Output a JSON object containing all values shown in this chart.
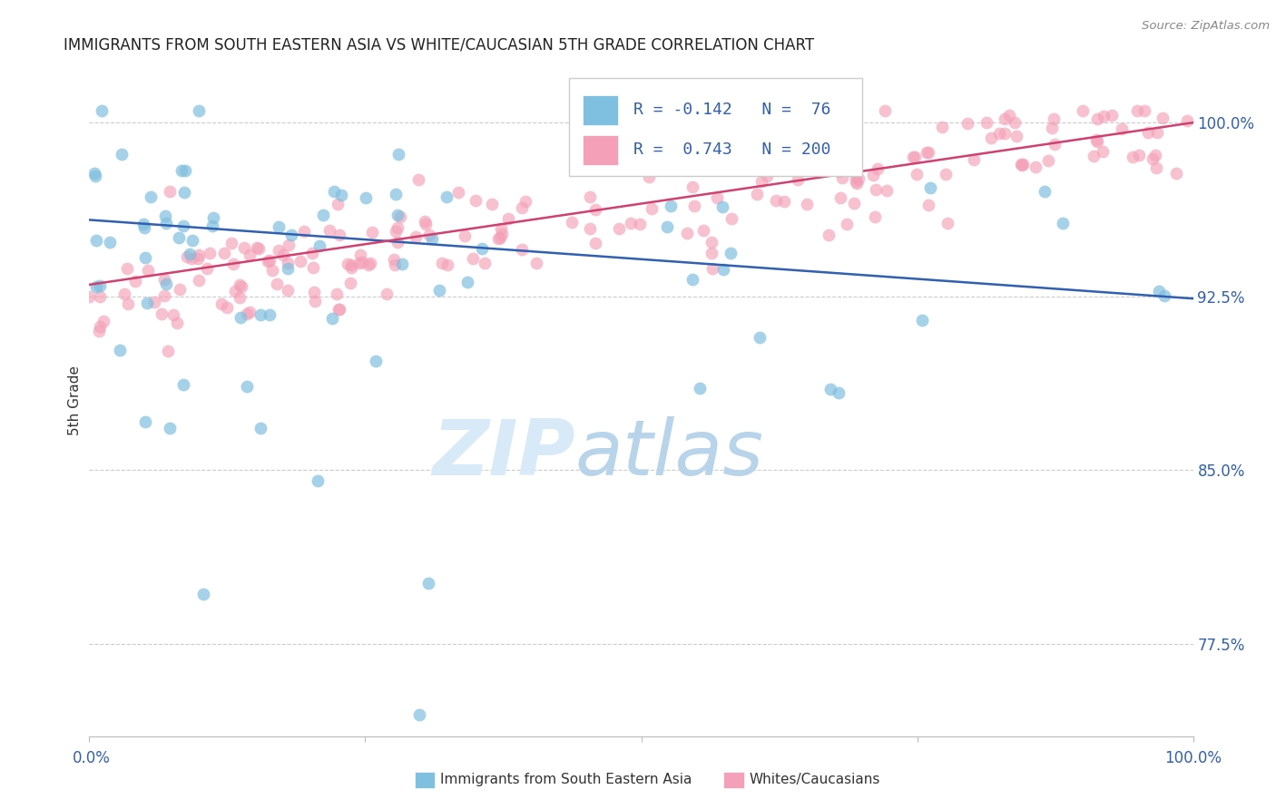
{
  "title": "IMMIGRANTS FROM SOUTH EASTERN ASIA VS WHITE/CAUCASIAN 5TH GRADE CORRELATION CHART",
  "source": "Source: ZipAtlas.com",
  "ylabel": "5th Grade",
  "ytick_labels": [
    "77.5%",
    "85.0%",
    "92.5%",
    "100.0%"
  ],
  "ytick_values": [
    0.775,
    0.85,
    0.925,
    1.0
  ],
  "xlim": [
    0.0,
    1.0
  ],
  "ylim": [
    0.735,
    1.025
  ],
  "blue_R": -0.142,
  "blue_N": 76,
  "pink_R": 0.743,
  "pink_N": 200,
  "blue_color": "#7fbfdf",
  "pink_color": "#f4a0b8",
  "blue_line_color": "#3060b0",
  "pink_line_color": "#d04070",
  "blue_line_start_y": 0.958,
  "blue_line_end_y": 0.924,
  "pink_line_start_y": 0.93,
  "pink_line_end_y": 1.0,
  "legend_label_blue": "Immigrants from South Eastern Asia",
  "legend_label_pink": "Whites/Caucasians"
}
